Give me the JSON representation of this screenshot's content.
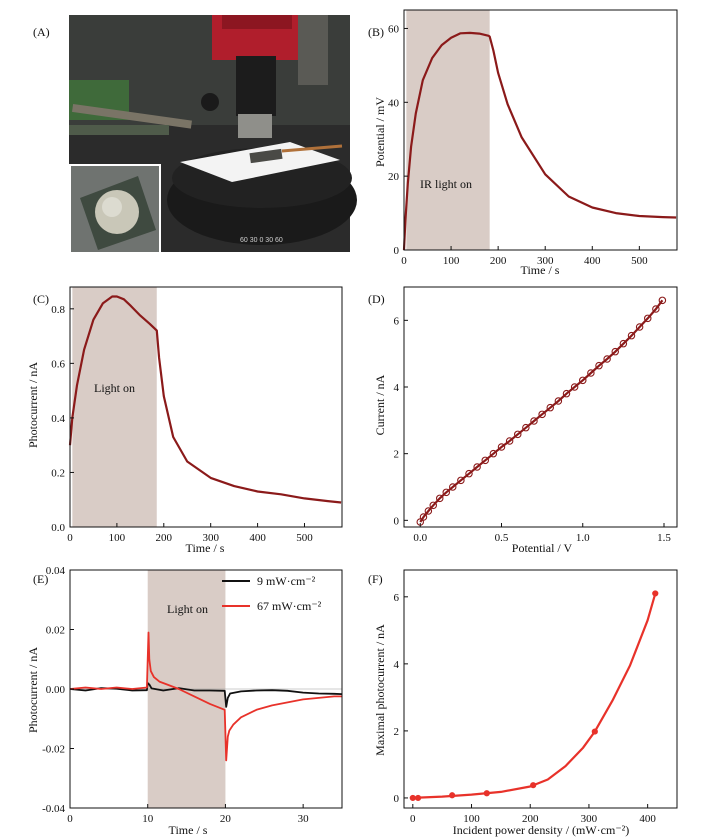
{
  "figure": {
    "panel_labels": [
      "(A)",
      "(B)",
      "(C)",
      "(D)",
      "(E)",
      "(F)"
    ]
  },
  "photo": {
    "label": "(A)",
    "scale_text": "60 30 0 30 60",
    "background_color": "#2b2b2b",
    "sample_color": "#c9c7b8"
  },
  "colors": {
    "dark_red": "#8b1a1a",
    "red": "#e8322a",
    "black": "#111111",
    "shade": "#d9ccc6"
  },
  "chart_data": [
    {
      "panel": "(B)",
      "type": "line",
      "xlabel": "Time / s",
      "ylabel": "Potential / mV",
      "xlim": [
        0,
        580
      ],
      "ylim": [
        0,
        65
      ],
      "xticks": [
        0,
        100,
        200,
        300,
        400,
        500
      ],
      "yticks": [
        0,
        20,
        40,
        60
      ],
      "shaded_region": {
        "x": [
          5,
          182
        ],
        "label": "IR light on"
      },
      "series": [
        {
          "color": "#8b1a1a",
          "x": [
            0,
            3,
            8,
            15,
            25,
            40,
            60,
            80,
            100,
            120,
            140,
            160,
            180,
            182,
            190,
            200,
            220,
            250,
            300,
            350,
            400,
            450,
            500,
            550,
            578
          ],
          "y": [
            0,
            8,
            18,
            28,
            37,
            46,
            52,
            55.5,
            57.5,
            58.7,
            58.8,
            58.6,
            58,
            57.8,
            54,
            48,
            39.5,
            30.5,
            20.5,
            14.5,
            11.5,
            10,
            9.2,
            8.9,
            8.8
          ]
        }
      ]
    },
    {
      "panel": "(C)",
      "type": "line",
      "xlabel": "Time / s",
      "ylabel": "Photocurrent / nA",
      "xlim": [
        0,
        580
      ],
      "ylim": [
        0,
        0.88
      ],
      "xticks": [
        0,
        100,
        200,
        300,
        400,
        500
      ],
      "yticks": [
        0,
        0.2,
        0.4,
        0.6,
        0.8
      ],
      "shaded_region": {
        "x": [
          5,
          185
        ],
        "label": "Light on"
      },
      "series": [
        {
          "color": "#8b1a1a",
          "x": [
            0,
            5,
            15,
            30,
            50,
            70,
            90,
            100,
            115,
            130,
            150,
            170,
            185,
            190,
            200,
            220,
            250,
            300,
            350,
            400,
            450,
            500,
            550,
            578
          ],
          "y": [
            0.3,
            0.4,
            0.52,
            0.65,
            0.76,
            0.82,
            0.845,
            0.845,
            0.835,
            0.81,
            0.775,
            0.745,
            0.72,
            0.62,
            0.48,
            0.33,
            0.24,
            0.18,
            0.15,
            0.13,
            0.12,
            0.105,
            0.095,
            0.09
          ]
        }
      ]
    },
    {
      "panel": "(D)",
      "type": "scatter",
      "xlabel": "Potential / V",
      "ylabel": "Current / nA",
      "xlim": [
        -0.1,
        1.58
      ],
      "ylim": [
        -0.2,
        7.0
      ],
      "xticks": [
        0.0,
        0.5,
        1.0,
        1.5
      ],
      "yticks": [
        0,
        2,
        4,
        6
      ],
      "series": [
        {
          "color": "#8b1a1a",
          "x": [
            0,
            0.02,
            0.05,
            0.08,
            0.12,
            0.16,
            0.2,
            0.25,
            0.3,
            0.35,
            0.4,
            0.45,
            0.5,
            0.55,
            0.6,
            0.65,
            0.7,
            0.75,
            0.8,
            0.85,
            0.9,
            0.95,
            1.0,
            1.05,
            1.1,
            1.15,
            1.2,
            1.25,
            1.3,
            1.35,
            1.4,
            1.45,
            1.49
          ],
          "y": [
            -0.05,
            0.1,
            0.28,
            0.45,
            0.66,
            0.84,
            1.0,
            1.2,
            1.4,
            1.6,
            1.8,
            2.0,
            2.2,
            2.38,
            2.58,
            2.78,
            2.98,
            3.18,
            3.38,
            3.58,
            3.8,
            4.0,
            4.2,
            4.42,
            4.64,
            4.84,
            5.06,
            5.3,
            5.54,
            5.8,
            6.06,
            6.34,
            6.6
          ]
        }
      ]
    },
    {
      "panel": "(E)",
      "type": "line",
      "xlabel": "Time / s",
      "ylabel": "Photocurrent / nA",
      "xlim": [
        0,
        35
      ],
      "ylim": [
        -0.04,
        0.04
      ],
      "xticks": [
        0,
        10,
        20,
        30
      ],
      "yticks": [
        -0.04,
        -0.02,
        0.0,
        0.02,
        0.04
      ],
      "shaded_region": {
        "x": [
          10,
          20
        ],
        "label": "Light on"
      },
      "legend_position": "top-right",
      "series": [
        {
          "name": "9 mW·cm⁻²",
          "color": "#111111",
          "x": [
            0,
            2,
            4,
            6,
            8,
            9.9,
            10,
            10.2,
            10.5,
            12,
            14,
            16,
            18,
            19.9,
            20.1,
            20.3,
            20.6,
            22,
            24,
            26,
            28,
            30,
            32,
            34,
            35
          ],
          "y": [
            0,
            -0.0005,
            0.0003,
            0.0001,
            -0.0005,
            -0.0004,
            0.002,
            0.0015,
            0.0002,
            -0.0005,
            0.0003,
            -0.0005,
            -0.0005,
            -0.0006,
            -0.006,
            -0.003,
            -0.0015,
            -0.0008,
            -0.0005,
            -0.0004,
            -0.0006,
            -0.0012,
            -0.0015,
            -0.0016,
            -0.0017
          ]
        },
        {
          "name": "67 mW·cm⁻²",
          "color": "#e8322a",
          "x": [
            0,
            2,
            4,
            6,
            8,
            9.9,
            10.1,
            10.2,
            10.4,
            10.8,
            11.5,
            12.5,
            14,
            16,
            18,
            19.9,
            20.1,
            20.3,
            20.5,
            21,
            22,
            24,
            26,
            28,
            30,
            32,
            34,
            35
          ],
          "y": [
            0,
            0.0005,
            0,
            0.0005,
            0,
            0.0005,
            0.019,
            0.01,
            0.006,
            0.004,
            0.0025,
            0.0015,
            0,
            -0.0025,
            -0.005,
            -0.007,
            -0.024,
            -0.016,
            -0.014,
            -0.012,
            -0.0095,
            -0.007,
            -0.0055,
            -0.0045,
            -0.0035,
            -0.003,
            -0.0025,
            -0.0025
          ]
        }
      ]
    },
    {
      "panel": "(F)",
      "type": "line",
      "xlabel": "Incident power density / (mW·cm⁻²)",
      "ylabel": "Maximal photocurrent / nA",
      "xlim": [
        -15,
        450
      ],
      "ylim": [
        -0.3,
        6.8
      ],
      "xticks": [
        0,
        100,
        200,
        300,
        400
      ],
      "yticks": [
        0,
        2,
        4,
        6
      ],
      "markers": {
        "x": [
          0,
          9,
          67,
          126,
          205,
          310,
          413
        ],
        "y": [
          0.0,
          0.0,
          0.08,
          0.14,
          0.38,
          1.98,
          6.1
        ]
      },
      "series": [
        {
          "color": "#e8322a",
          "x": [
            0,
            50,
            100,
            150,
            200,
            230,
            260,
            290,
            310,
            340,
            370,
            400,
            413
          ],
          "y": [
            0.0,
            0.04,
            0.1,
            0.18,
            0.34,
            0.55,
            0.95,
            1.5,
            1.98,
            2.9,
            3.95,
            5.3,
            6.1
          ]
        }
      ]
    }
  ]
}
